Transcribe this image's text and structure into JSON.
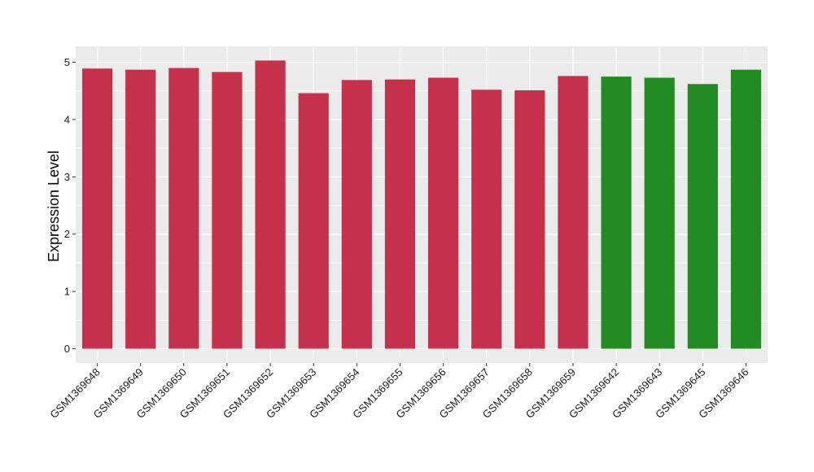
{
  "chart_data": {
    "type": "bar",
    "ylabel": "Expression Level",
    "xlabel": "",
    "ylim": [
      -0.25,
      5.25
    ],
    "yticks": [
      0,
      1,
      2,
      3,
      4,
      5
    ],
    "grid": true,
    "colors": {
      "group_a": "#C5304A",
      "group_b": "#228B22",
      "panel": "#EBEBEB",
      "grid": "#FFFFFF"
    },
    "categories": [
      "GSM1369648",
      "GSM1369649",
      "GSM1369650",
      "GSM1369651",
      "GSM1369652",
      "GSM1369653",
      "GSM1369654",
      "GSM1369655",
      "GSM1369656",
      "GSM1369657",
      "GSM1369658",
      "GSM1369659",
      "GSM1369642",
      "GSM1369643",
      "GSM1369645",
      "GSM1369646"
    ],
    "values": [
      4.89,
      4.87,
      4.9,
      4.83,
      5.03,
      4.46,
      4.69,
      4.7,
      4.73,
      4.52,
      4.51,
      4.76,
      4.75,
      4.73,
      4.62,
      4.87
    ],
    "groups": [
      "a",
      "a",
      "a",
      "a",
      "a",
      "a",
      "a",
      "a",
      "a",
      "a",
      "a",
      "a",
      "b",
      "b",
      "b",
      "b"
    ]
  }
}
